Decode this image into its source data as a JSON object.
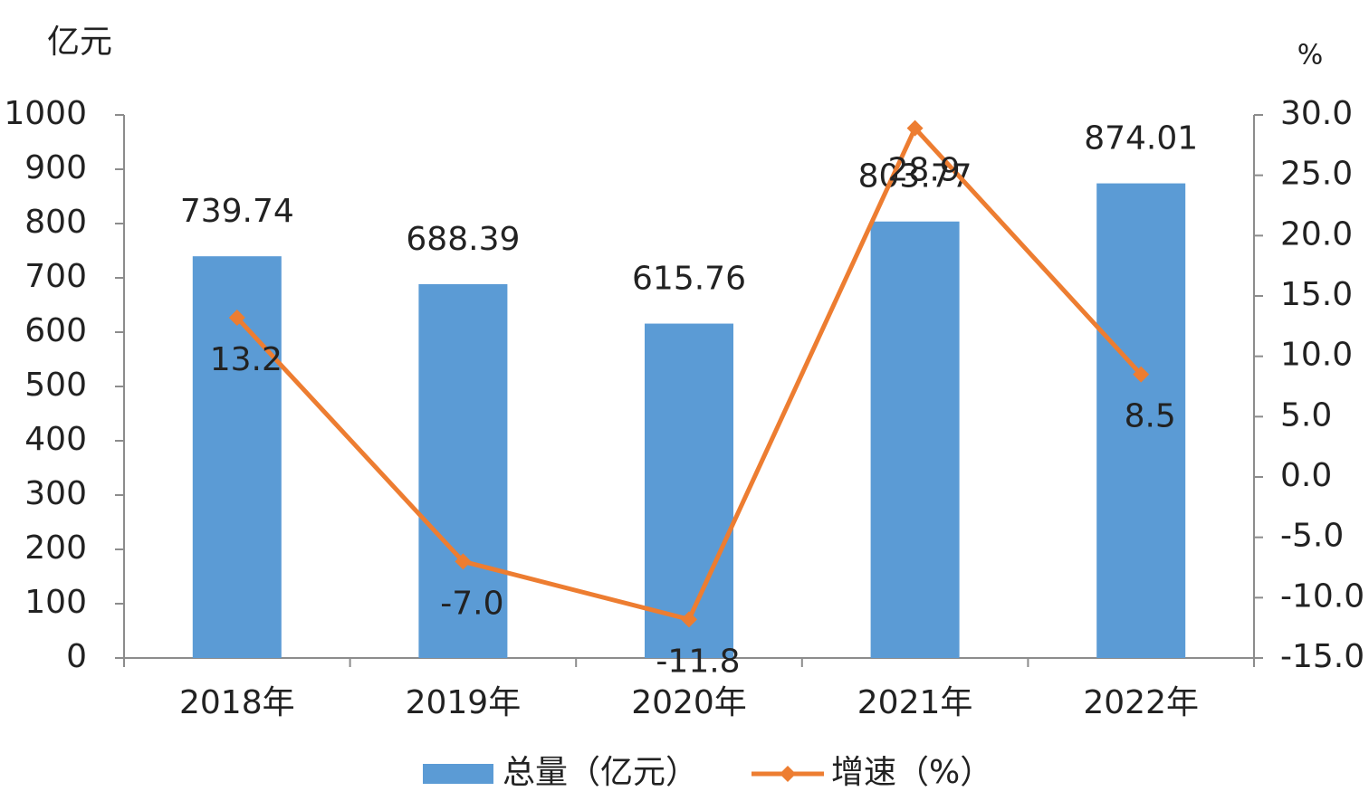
{
  "chart_data": {
    "type": "combo",
    "y_label": "亿元",
    "y2_label": "%",
    "categories": [
      "2018年",
      "2019年",
      "2020年",
      "2021年",
      "2022年"
    ],
    "series": [
      {
        "name": "总量（亿元）",
        "type": "bar",
        "color": "#5b9bd5",
        "values": [
          739.74,
          688.39,
          615.76,
          803.77,
          874.01
        ]
      },
      {
        "name": "增速（%）",
        "type": "line",
        "axis": "y2",
        "color": "#ed7d31",
        "values": [
          13.2,
          -7.0,
          -11.8,
          28.9,
          8.5
        ],
        "value_labels": [
          "13.2",
          "-7.0",
          "-11.8",
          "28.9",
          "8.5"
        ]
      }
    ],
    "ylim": [
      0,
      1000
    ],
    "yticks": [
      0,
      100,
      200,
      300,
      400,
      500,
      600,
      700,
      800,
      900,
      1000
    ],
    "y2lim": [
      -15,
      30
    ],
    "y2ticks": [
      {
        "value": -15,
        "label": "-15.0"
      },
      {
        "value": -10,
        "label": "-10.0"
      },
      {
        "value": -5,
        "label": "-5.0"
      },
      {
        "value": 0,
        "label": "0.0"
      },
      {
        "value": 5,
        "label": "5.0"
      },
      {
        "value": 10,
        "label": "10.0"
      },
      {
        "value": 15,
        "label": "15.0"
      },
      {
        "value": 20,
        "label": "20.0"
      },
      {
        "value": 25,
        "label": "25.0"
      },
      {
        "value": 30,
        "label": "30.0"
      }
    ],
    "grid": false,
    "legend": "bottom"
  }
}
